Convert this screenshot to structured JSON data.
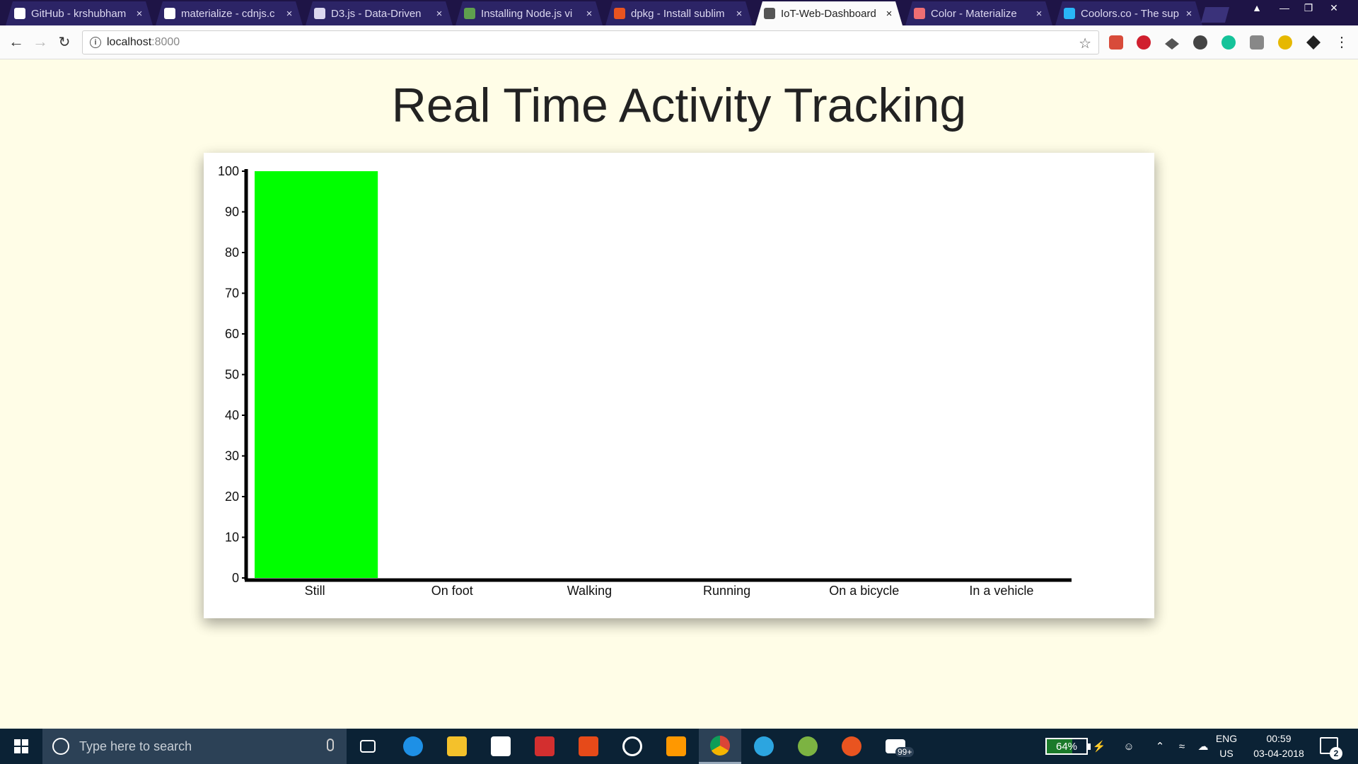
{
  "browser": {
    "tabs": [
      {
        "title": "GitHub - krshubham",
        "favicon": "github-icon",
        "color": "#ffffff"
      },
      {
        "title": "materialize - cdnjs.c",
        "favicon": "cdnjs-icon",
        "color": "#ffffff"
      },
      {
        "title": "D3.js - Data-Driven",
        "favicon": "page-icon",
        "color": "#dcd8f0"
      },
      {
        "title": "Installing Node.js vi",
        "favicon": "nodejs-icon",
        "color": "#5fa04e"
      },
      {
        "title": "dpkg - Install sublim",
        "favicon": "askubuntu-icon",
        "color": "#e95420"
      },
      {
        "title": "IoT-Web-Dashboard",
        "favicon": "page-icon",
        "color": "#555555"
      },
      {
        "title": "Color - Materialize",
        "favicon": "materialize-icon",
        "color": "#ee6e73"
      },
      {
        "title": "Coolors.co - The sup",
        "favicon": "coolors-icon",
        "color": "#29b6f6"
      }
    ],
    "active_tab": 5,
    "url_host": "localhost",
    "url_port": ":8000"
  },
  "page": {
    "title": "Real Time Activity Tracking"
  },
  "chart_data": {
    "type": "bar",
    "title": "",
    "xlabel": "",
    "ylabel": "",
    "categories": [
      "Still",
      "On foot",
      "Walking",
      "Running",
      "On a bicycle",
      "In a vehicle"
    ],
    "values": [
      100,
      0,
      0,
      0,
      0,
      0
    ],
    "ylim": [
      0,
      100
    ],
    "yticks": [
      0,
      10,
      20,
      30,
      40,
      50,
      60,
      70,
      80,
      90,
      100
    ],
    "bar_color": "#00ff00",
    "grid": false,
    "legend": "none"
  },
  "taskbar": {
    "search_placeholder": "Type here to search",
    "battery_percent": "64%",
    "battery_level": 0.64,
    "language": "ENG",
    "region": "US",
    "time": "00:59",
    "date": "03-04-2018",
    "mail_badge": "99+",
    "notification_count": "2"
  }
}
